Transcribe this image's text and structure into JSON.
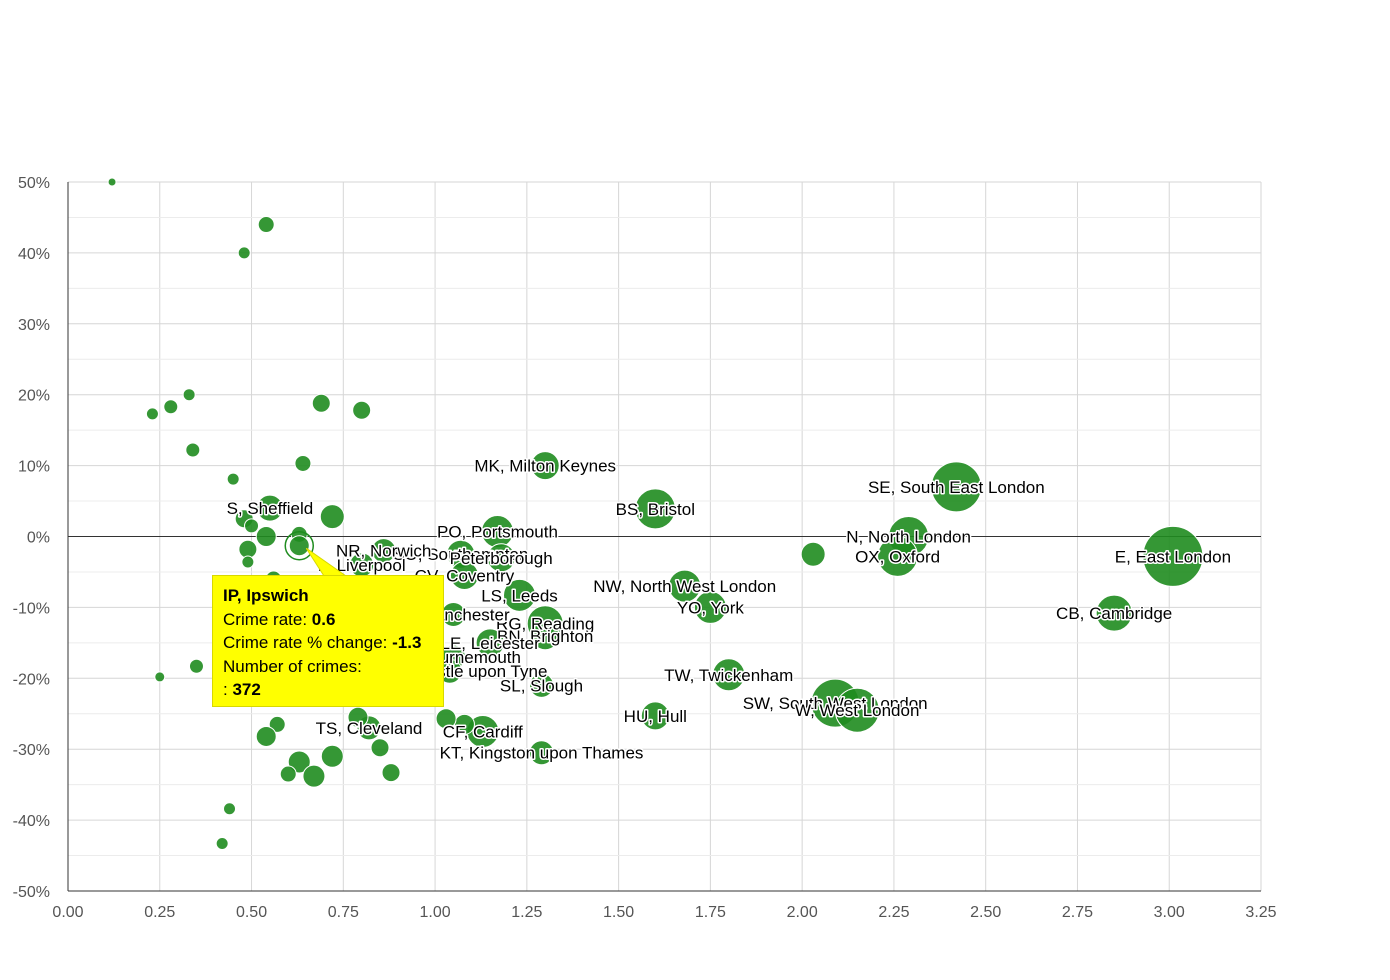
{
  "chart_data": {
    "type": "scatter",
    "title": "",
    "xlabel": "",
    "ylabel": "",
    "xlim": [
      0,
      3.25
    ],
    "ylim": [
      -50,
      50
    ],
    "x_ticks": [
      "0.00",
      "0.25",
      "0.50",
      "0.75",
      "1.00",
      "1.25",
      "1.50",
      "1.75",
      "2.00",
      "2.25",
      "2.50",
      "2.75",
      "3.00",
      "3.25"
    ],
    "y_ticks": [
      "50%",
      "40%",
      "30%",
      "20%",
      "10%",
      "0%",
      "-10%",
      "-20%",
      "-30%",
      "-40%",
      "-50%"
    ],
    "grid": true,
    "bubble_color": "#1f8c1f",
    "highlight_color": "#ffff00",
    "points": [
      {
        "x": 3.01,
        "y": -2.8,
        "size": 30,
        "label": "E, East London"
      },
      {
        "x": 2.42,
        "y": 7.0,
        "size": 25,
        "label": "SE, South East London"
      },
      {
        "x": 2.29,
        "y": 0.0,
        "size": 20,
        "label": "N, North London"
      },
      {
        "x": 2.26,
        "y": -2.8,
        "size": 20,
        "label": "OX, Oxford"
      },
      {
        "x": 2.85,
        "y": -10.8,
        "size": 18,
        "label": "CB, Cambridge"
      },
      {
        "x": 2.03,
        "y": -2.5,
        "size": 12,
        "label": ""
      },
      {
        "x": 2.09,
        "y": -23.5,
        "size": 24,
        "label": "SW, South West London"
      },
      {
        "x": 2.15,
        "y": -24.5,
        "size": 22,
        "label": "W, West London"
      },
      {
        "x": 1.6,
        "y": 3.9,
        "size": 20,
        "label": "BS, Bristol"
      },
      {
        "x": 1.68,
        "y": -7.0,
        "size": 16,
        "label": "NW, North West London"
      },
      {
        "x": 1.75,
        "y": -10.0,
        "size": 16,
        "label": "YO, York"
      },
      {
        "x": 1.8,
        "y": -19.5,
        "size": 16,
        "label": "TW, Twickenham"
      },
      {
        "x": 1.6,
        "y": -25.3,
        "size": 14,
        "label": "HU, Hull"
      },
      {
        "x": 1.3,
        "y": 10.0,
        "size": 14,
        "label": "MK, Milton Keynes"
      },
      {
        "x": 1.17,
        "y": 0.7,
        "size": 16,
        "label": "PO, Portsmouth"
      },
      {
        "x": 1.07,
        "y": -2.5,
        "size": 14,
        "label": "SO, Southampton"
      },
      {
        "x": 1.18,
        "y": -3.0,
        "size": 14,
        "label": "Peterborough"
      },
      {
        "x": 1.08,
        "y": -5.5,
        "size": 14,
        "label": "CV, Coventry"
      },
      {
        "x": 1.23,
        "y": -8.3,
        "size": 16,
        "label": "LS, Leeds"
      },
      {
        "x": 1.3,
        "y": -12.3,
        "size": 18,
        "label": "RG, Reading"
      },
      {
        "x": 1.3,
        "y": -14.0,
        "size": 14,
        "label": "BN, Brighton"
      },
      {
        "x": 1.15,
        "y": -15.0,
        "size": 14,
        "label": "LE, Leicester"
      },
      {
        "x": 1.05,
        "y": -11.0,
        "size": 12,
        "label": "M, Manchester"
      },
      {
        "x": 1.05,
        "y": -17.0,
        "size": 12,
        "label": "BH, Bournemouth"
      },
      {
        "x": 1.04,
        "y": -19.0,
        "size": 12,
        "label": "NE, Newcastle upon Tyne"
      },
      {
        "x": 1.29,
        "y": -21.0,
        "size": 12,
        "label": "SL, Slough"
      },
      {
        "x": 1.13,
        "y": -27.5,
        "size": 16,
        "label": "CF, Cardiff"
      },
      {
        "x": 1.29,
        "y": -30.5,
        "size": 12,
        "label": "KT, Kingston upon Thames"
      },
      {
        "x": 1.08,
        "y": -26.5,
        "size": 10,
        "label": ""
      },
      {
        "x": 1.03,
        "y": -25.7,
        "size": 10,
        "label": ""
      },
      {
        "x": 0.86,
        "y": -2.0,
        "size": 12,
        "label": "NR, Norwich"
      },
      {
        "x": 0.8,
        "y": -4.0,
        "size": 12,
        "label": "L, Liverpool"
      },
      {
        "x": 0.55,
        "y": 4.0,
        "size": 13,
        "label": "S, Sheffield"
      },
      {
        "x": 0.72,
        "y": 2.8,
        "size": 12,
        "label": ""
      },
      {
        "x": 0.82,
        "y": -27.0,
        "size": 12,
        "label": "TS, Cleveland"
      },
      {
        "x": 0.79,
        "y": -25.5,
        "size": 10,
        "label": ""
      },
      {
        "x": 0.12,
        "y": 50.0,
        "size": 4,
        "label": ""
      },
      {
        "x": 0.54,
        "y": 44.0,
        "size": 8,
        "label": ""
      },
      {
        "x": 0.48,
        "y": 40.0,
        "size": 6,
        "label": ""
      },
      {
        "x": 0.33,
        "y": 20.0,
        "size": 6,
        "label": ""
      },
      {
        "x": 0.28,
        "y": 18.3,
        "size": 7,
        "label": ""
      },
      {
        "x": 0.23,
        "y": 17.3,
        "size": 6,
        "label": ""
      },
      {
        "x": 0.69,
        "y": 18.8,
        "size": 9,
        "label": ""
      },
      {
        "x": 0.8,
        "y": 17.8,
        "size": 9,
        "label": ""
      },
      {
        "x": 0.34,
        "y": 12.2,
        "size": 7,
        "label": ""
      },
      {
        "x": 0.64,
        "y": 10.3,
        "size": 8,
        "label": ""
      },
      {
        "x": 0.45,
        "y": 8.1,
        "size": 6,
        "label": ""
      },
      {
        "x": 0.48,
        "y": 2.5,
        "size": 9,
        "label": ""
      },
      {
        "x": 0.5,
        "y": 1.5,
        "size": 7,
        "label": ""
      },
      {
        "x": 0.63,
        "y": 0.3,
        "size": 8,
        "label": ""
      },
      {
        "x": 0.54,
        "y": 0.0,
        "size": 10,
        "label": ""
      },
      {
        "x": 0.49,
        "y": -1.8,
        "size": 9,
        "label": ""
      },
      {
        "x": 0.49,
        "y": -3.6,
        "size": 6,
        "label": ""
      },
      {
        "x": 0.56,
        "y": -6.0,
        "size": 8,
        "label": ""
      },
      {
        "x": 0.25,
        "y": -19.8,
        "size": 5,
        "label": ""
      },
      {
        "x": 0.35,
        "y": -18.3,
        "size": 7,
        "label": ""
      },
      {
        "x": 0.57,
        "y": -26.5,
        "size": 8,
        "label": ""
      },
      {
        "x": 0.54,
        "y": -28.2,
        "size": 10,
        "label": ""
      },
      {
        "x": 0.63,
        "y": -31.8,
        "size": 11,
        "label": ""
      },
      {
        "x": 0.6,
        "y": -33.5,
        "size": 8,
        "label": ""
      },
      {
        "x": 0.67,
        "y": -33.8,
        "size": 11,
        "label": ""
      },
      {
        "x": 0.72,
        "y": -31.0,
        "size": 11,
        "label": ""
      },
      {
        "x": 0.85,
        "y": -29.8,
        "size": 9,
        "label": ""
      },
      {
        "x": 0.88,
        "y": -33.3,
        "size": 9,
        "label": ""
      },
      {
        "x": 0.44,
        "y": -38.4,
        "size": 6,
        "label": ""
      },
      {
        "x": 0.42,
        "y": -43.3,
        "size": 6,
        "label": ""
      },
      {
        "x": 0.63,
        "y": -1.3,
        "size": 10,
        "label": "IP, Ipswich",
        "highlight": true
      }
    ],
    "tooltip": {
      "title": "IP, Ipswich",
      "rate_label": "Crime rate: ",
      "rate_value": "0.6",
      "change_label": "Crime rate % change: ",
      "change_value": "-1.3",
      "count_label": "Number of crimes:",
      "count_prefix": ": ",
      "count_value": "372"
    }
  }
}
